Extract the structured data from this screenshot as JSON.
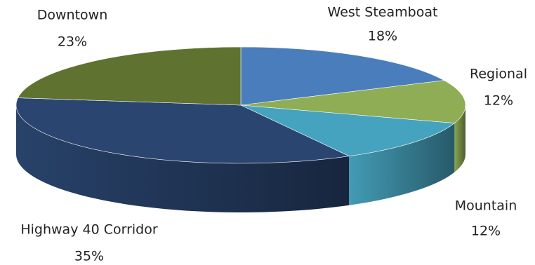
{
  "chart_data": {
    "type": "pie",
    "style": "3d-exploded-perspective",
    "title": "",
    "categories": [
      "West Steamboat",
      "Regional",
      "Mountain",
      "Highway 40 Corridor",
      "Downtown"
    ],
    "values": [
      18,
      12,
      12,
      35,
      23
    ],
    "value_labels": [
      "18%",
      "12%",
      "12%",
      "35%",
      "23%"
    ],
    "colors": [
      "#4A7DBC",
      "#8FAD55",
      "#46A3BF",
      "#2A4570",
      "#5F7230"
    ],
    "start": "top, clockwise",
    "legend": "none; category labels beside slices"
  }
}
